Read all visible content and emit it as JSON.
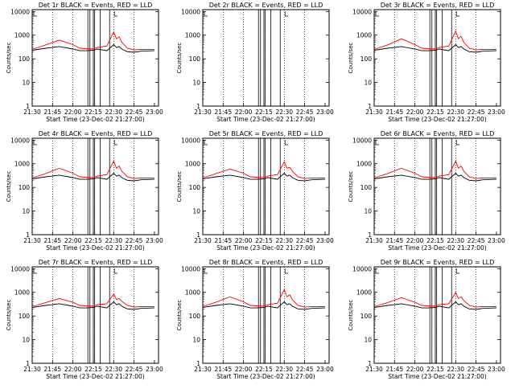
{
  "chart_data": [
    {
      "type": "line",
      "title": "Det 1r  BLACK = Events, RED = LLD",
      "xlabel": "Start Time (23-Dec-02 21:27:00)",
      "ylabel": "Counts/sec",
      "x_ticks": [
        "21:30",
        "21:45",
        "22:00",
        "22:15",
        "22:30",
        "22:45",
        "23:00"
      ],
      "xlim_min": [
        3,
        96
      ],
      "y_ticks": [
        "1",
        "10",
        "100",
        "1000",
        "10000"
      ],
      "ylim": [
        1,
        12000
      ],
      "yscale": "log",
      "vlines_solid_min": [
        44,
        45.5,
        48,
        49,
        53,
        60
      ],
      "vlines_dotted_min": [
        3,
        18,
        33,
        48,
        63,
        78
      ],
      "series": [
        {
          "name": "Events",
          "color": "#000000",
          "x": [
            0,
            10,
            20,
            30,
            35,
            40,
            45,
            48,
            55,
            60,
            62,
            64,
            66,
            70,
            75,
            80,
            90
          ],
          "y": [
            230,
            280,
            330,
            260,
            220,
            220,
            230,
            260,
            220,
            400,
            300,
            330,
            260,
            200,
            190,
            210,
            220
          ]
        },
        {
          "name": "LLD",
          "color": "#ff0000",
          "x": [
            0,
            10,
            20,
            30,
            35,
            40,
            45,
            48,
            55,
            60,
            62,
            64,
            66,
            70,
            75,
            80,
            90
          ],
          "y": [
            250,
            390,
            620,
            400,
            280,
            270,
            260,
            300,
            350,
            1350,
            700,
            850,
            500,
            280,
            240,
            250,
            250
          ]
        }
      ]
    },
    {
      "type": "line",
      "title": "Det 2r  BLACK = Events, RED = LLD",
      "xlabel": "Start Time (23-Dec-02 21:27:00)",
      "ylabel": "Counts/sec",
      "x_ticks": [
        "21:30",
        "21:45",
        "22:00",
        "22:15",
        "22:30",
        "22:45",
        "23:00"
      ],
      "xlim_min": [
        3,
        96
      ],
      "y_ticks": [
        "1",
        "10",
        "100",
        "1000",
        "10000"
      ],
      "ylim": [
        1,
        12000
      ],
      "yscale": "log",
      "vlines_solid_min": [
        44,
        45.5,
        48,
        49,
        53,
        60
      ],
      "vlines_dotted_min": [
        3,
        18,
        33,
        48,
        63,
        78
      ],
      "series": [
        {
          "name": "Events",
          "color": "#000000",
          "x": [],
          "y": []
        },
        {
          "name": "LLD",
          "color": "#ff0000",
          "x": [],
          "y": []
        }
      ]
    },
    {
      "type": "line",
      "title": "Det 3r  BLACK = Events, RED = LLD",
      "xlabel": "Start Time (23-Dec-02 21:27:00)",
      "ylabel": "Counts/sec",
      "x_ticks": [
        "21:30",
        "21:45",
        "22:00",
        "22:15",
        "22:30",
        "22:45",
        "23:00"
      ],
      "xlim_min": [
        3,
        96
      ],
      "y_ticks": [
        "1",
        "10",
        "100",
        "1000",
        "10000"
      ],
      "ylim": [
        1,
        12000
      ],
      "yscale": "log",
      "vlines_solid_min": [
        44,
        45.5,
        48,
        49,
        53,
        60
      ],
      "vlines_dotted_min": [
        3,
        18,
        33,
        48,
        63,
        78
      ],
      "series": [
        {
          "name": "Events",
          "color": "#000000",
          "x": [
            0,
            10,
            20,
            30,
            35,
            40,
            45,
            48,
            55,
            60,
            62,
            64,
            66,
            70,
            75,
            80,
            90
          ],
          "y": [
            230,
            280,
            330,
            260,
            220,
            220,
            230,
            260,
            220,
            400,
            300,
            330,
            260,
            200,
            190,
            210,
            220
          ]
        },
        {
          "name": "LLD",
          "color": "#ff0000",
          "x": [
            0,
            10,
            20,
            30,
            35,
            40,
            45,
            48,
            55,
            60,
            62,
            64,
            66,
            70,
            75,
            80,
            90
          ],
          "y": [
            250,
            390,
            700,
            400,
            280,
            270,
            260,
            300,
            350,
            1500,
            700,
            900,
            500,
            280,
            240,
            250,
            250
          ]
        }
      ]
    },
    {
      "type": "line",
      "title": "Det 4r  BLACK = Events, RED = LLD",
      "xlabel": "Start Time (23-Dec-02 21:27:00)",
      "ylabel": "Counts/sec",
      "x_ticks": [
        "21:30",
        "21:45",
        "22:00",
        "22:15",
        "22:30",
        "22:45",
        "23:00"
      ],
      "xlim_min": [
        3,
        96
      ],
      "y_ticks": [
        "1",
        "10",
        "100",
        "1000",
        "10000"
      ],
      "ylim": [
        1,
        12000
      ],
      "yscale": "log",
      "vlines_solid_min": [
        44,
        45.5,
        48,
        49,
        53,
        60
      ],
      "vlines_dotted_min": [
        3,
        18,
        33,
        48,
        63,
        78
      ],
      "series": [
        {
          "name": "Events",
          "color": "#000000",
          "x": [
            0,
            10,
            20,
            30,
            35,
            40,
            45,
            48,
            55,
            60,
            62,
            64,
            66,
            70,
            75,
            80,
            90
          ],
          "y": [
            230,
            280,
            330,
            260,
            220,
            220,
            230,
            260,
            220,
            400,
            300,
            330,
            260,
            200,
            190,
            210,
            220
          ]
        },
        {
          "name": "LLD",
          "color": "#ff0000",
          "x": [
            0,
            10,
            20,
            30,
            35,
            40,
            45,
            48,
            55,
            60,
            62,
            64,
            66,
            70,
            75,
            80,
            90
          ],
          "y": [
            250,
            390,
            650,
            400,
            280,
            270,
            260,
            300,
            350,
            1300,
            650,
            800,
            480,
            280,
            240,
            250,
            250
          ]
        }
      ]
    },
    {
      "type": "line",
      "title": "Det 5r  BLACK = Events, RED = LLD",
      "xlabel": "Start Time (23-Dec-02 21:27:00)",
      "ylabel": "Counts/sec",
      "x_ticks": [
        "21:30",
        "21:45",
        "22:00",
        "22:15",
        "22:30",
        "22:45",
        "23:00"
      ],
      "xlim_min": [
        3,
        96
      ],
      "y_ticks": [
        "1",
        "10",
        "100",
        "1000",
        "10000"
      ],
      "ylim": [
        1,
        12000
      ],
      "yscale": "log",
      "vlines_solid_min": [
        44,
        45.5,
        48,
        49,
        53,
        60
      ],
      "vlines_dotted_min": [
        3,
        18,
        33,
        48,
        63,
        78
      ],
      "series": [
        {
          "name": "Events",
          "color": "#000000",
          "x": [
            0,
            10,
            20,
            30,
            35,
            40,
            45,
            48,
            55,
            60,
            62,
            64,
            66,
            70,
            75,
            80,
            90
          ],
          "y": [
            230,
            280,
            330,
            260,
            220,
            220,
            230,
            260,
            220,
            400,
            300,
            330,
            260,
            200,
            190,
            210,
            220
          ]
        },
        {
          "name": "LLD",
          "color": "#ff0000",
          "x": [
            0,
            10,
            20,
            30,
            35,
            40,
            45,
            48,
            55,
            60,
            62,
            64,
            66,
            70,
            75,
            80,
            90
          ],
          "y": [
            250,
            390,
            600,
            400,
            280,
            270,
            260,
            300,
            350,
            1200,
            650,
            700,
            480,
            280,
            240,
            250,
            250
          ]
        }
      ]
    },
    {
      "type": "line",
      "title": "Det 6r  BLACK = Events, RED = LLD",
      "xlabel": "Start Time (23-Dec-02 21:27:00)",
      "ylabel": "Counts/sec",
      "x_ticks": [
        "21:30",
        "21:45",
        "22:00",
        "22:15",
        "22:30",
        "22:45",
        "23:00"
      ],
      "xlim_min": [
        3,
        96
      ],
      "y_ticks": [
        "1",
        "10",
        "100",
        "1000",
        "10000"
      ],
      "ylim": [
        1,
        12000
      ],
      "yscale": "log",
      "vlines_solid_min": [
        44,
        45.5,
        48,
        49,
        53,
        60
      ],
      "vlines_dotted_min": [
        3,
        18,
        33,
        48,
        63,
        78
      ],
      "series": [
        {
          "name": "Events",
          "color": "#000000",
          "x": [
            0,
            10,
            20,
            30,
            35,
            40,
            45,
            48,
            55,
            60,
            62,
            64,
            66,
            70,
            75,
            80,
            90
          ],
          "y": [
            230,
            280,
            330,
            260,
            220,
            220,
            230,
            260,
            220,
            400,
            300,
            330,
            260,
            200,
            190,
            210,
            220
          ]
        },
        {
          "name": "LLD",
          "color": "#ff0000",
          "x": [
            0,
            10,
            20,
            30,
            35,
            40,
            45,
            48,
            55,
            60,
            62,
            64,
            66,
            70,
            75,
            80,
            90
          ],
          "y": [
            250,
            390,
            650,
            400,
            280,
            270,
            260,
            300,
            350,
            1300,
            650,
            800,
            480,
            280,
            240,
            250,
            250
          ]
        }
      ]
    },
    {
      "type": "line",
      "title": "Det 7r  BLACK = Events, RED = LLD",
      "xlabel": "Start Time (23-Dec-02 21:27:00)",
      "ylabel": "Counts/sec",
      "x_ticks": [
        "21:30",
        "21:45",
        "22:00",
        "22:15",
        "22:30",
        "22:45",
        "23:00"
      ],
      "xlim_min": [
        3,
        96
      ],
      "y_ticks": [
        "1",
        "10",
        "100",
        "1000",
        "10000"
      ],
      "ylim": [
        1,
        12000
      ],
      "yscale": "log",
      "vlines_solid_min": [
        44,
        45.5,
        48,
        49,
        53,
        60
      ],
      "vlines_dotted_min": [
        3,
        18,
        33,
        48,
        63,
        78
      ],
      "series": [
        {
          "name": "Events",
          "color": "#000000",
          "x": [
            0,
            10,
            20,
            30,
            35,
            40,
            45,
            48,
            55,
            60,
            62,
            64,
            66,
            70,
            75,
            80,
            90
          ],
          "y": [
            230,
            280,
            330,
            260,
            220,
            220,
            230,
            260,
            220,
            400,
            300,
            330,
            260,
            200,
            190,
            210,
            220
          ]
        },
        {
          "name": "LLD",
          "color": "#ff0000",
          "x": [
            0,
            10,
            20,
            30,
            35,
            40,
            45,
            48,
            55,
            60,
            62,
            64,
            66,
            70,
            75,
            80,
            90
          ],
          "y": [
            250,
            370,
            550,
            380,
            280,
            270,
            260,
            300,
            330,
            850,
            500,
            550,
            420,
            280,
            240,
            250,
            250
          ]
        }
      ]
    },
    {
      "type": "line",
      "title": "Det 8r  BLACK = Events, RED = LLD",
      "xlabel": "Start Time (23-Dec-02 21:27:00)",
      "ylabel": "Counts/sec",
      "x_ticks": [
        "21:30",
        "21:45",
        "22:00",
        "22:15",
        "22:30",
        "22:45",
        "23:00"
      ],
      "xlim_min": [
        3,
        96
      ],
      "y_ticks": [
        "1",
        "10",
        "100",
        "1000",
        "10000"
      ],
      "ylim": [
        1,
        12000
      ],
      "yscale": "log",
      "vlines_solid_min": [
        44,
        45.5,
        48,
        49,
        53,
        60
      ],
      "vlines_dotted_min": [
        3,
        18,
        33,
        48,
        63,
        78
      ],
      "series": [
        {
          "name": "Events",
          "color": "#000000",
          "x": [
            0,
            10,
            20,
            30,
            35,
            40,
            45,
            48,
            55,
            60,
            62,
            64,
            66,
            70,
            75,
            80,
            90
          ],
          "y": [
            230,
            280,
            330,
            260,
            220,
            220,
            230,
            260,
            220,
            400,
            300,
            330,
            260,
            200,
            190,
            210,
            220
          ]
        },
        {
          "name": "LLD",
          "color": "#ff0000",
          "x": [
            0,
            10,
            20,
            30,
            35,
            40,
            45,
            48,
            55,
            60,
            62,
            64,
            66,
            70,
            75,
            80,
            90
          ],
          "y": [
            250,
            390,
            650,
            400,
            280,
            270,
            260,
            300,
            350,
            1300,
            650,
            800,
            480,
            280,
            240,
            250,
            250
          ]
        }
      ]
    },
    {
      "type": "line",
      "title": "Det 9r  BLACK = Events, RED = LLD",
      "xlabel": "Start Time (23-Dec-02 21:27:00)",
      "ylabel": "Counts/sec",
      "x_ticks": [
        "21:30",
        "21:45",
        "22:00",
        "22:15",
        "22:30",
        "22:45",
        "23:00"
      ],
      "xlim_min": [
        3,
        96
      ],
      "y_ticks": [
        "1",
        "10",
        "100",
        "1000",
        "10000"
      ],
      "ylim": [
        1,
        12000
      ],
      "yscale": "log",
      "vlines_solid_min": [
        44,
        45.5,
        48,
        49,
        53,
        60
      ],
      "vlines_dotted_min": [
        3,
        18,
        33,
        48,
        63,
        78
      ],
      "series": [
        {
          "name": "Events",
          "color": "#000000",
          "x": [
            0,
            10,
            20,
            30,
            35,
            40,
            45,
            48,
            55,
            60,
            62,
            64,
            66,
            70,
            75,
            80,
            90
          ],
          "y": [
            230,
            280,
            330,
            260,
            220,
            220,
            230,
            260,
            220,
            400,
            300,
            330,
            260,
            200,
            190,
            210,
            220
          ]
        },
        {
          "name": "LLD",
          "color": "#ff0000",
          "x": [
            0,
            10,
            20,
            30,
            35,
            40,
            45,
            48,
            55,
            60,
            62,
            64,
            66,
            70,
            75,
            80,
            90
          ],
          "y": [
            250,
            370,
            600,
            380,
            280,
            270,
            260,
            300,
            330,
            1000,
            550,
            650,
            450,
            280,
            240,
            250,
            250
          ]
        }
      ]
    }
  ]
}
